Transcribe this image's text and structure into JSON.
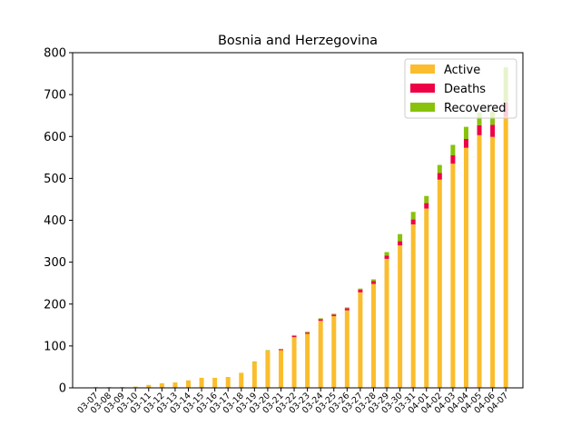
{
  "chart_data": {
    "type": "bar",
    "stacked": true,
    "title": "Bosnia and Herzegovina",
    "xlabel": "",
    "ylabel": "",
    "ylim": [
      0,
      800
    ],
    "yticks": [
      0,
      100,
      200,
      300,
      400,
      500,
      600,
      700,
      800
    ],
    "grid": false,
    "legend_position": "top-right",
    "categories": [
      "03-07",
      "03-08",
      "03-09",
      "03-10",
      "03-11",
      "03-12",
      "03-13",
      "03-14",
      "03-15",
      "03-16",
      "03-17",
      "03-18",
      "03-19",
      "03-20",
      "03-21",
      "03-22",
      "03-23",
      "03-24",
      "03-25",
      "03-26",
      "03-27",
      "03-28",
      "03-29",
      "03-30",
      "03-31",
      "04-01",
      "04-02",
      "04-03",
      "04-04",
      "04-05",
      "04-06",
      "04-07"
    ],
    "series": [
      {
        "name": "Active",
        "color": "#fbbd2d",
        "values": [
          2,
          2,
          2,
          3,
          7,
          11,
          13,
          18,
          24,
          24,
          26,
          36,
          62,
          89,
          90,
          121,
          129,
          160,
          171,
          185,
          228,
          248,
          308,
          340,
          390,
          428,
          497,
          535,
          573,
          603,
          599,
          647
        ]
      },
      {
        "name": "Deaths",
        "color": "#ed0345",
        "values": [
          0,
          0,
          0,
          0,
          0,
          0,
          0,
          0,
          0,
          0,
          0,
          0,
          0,
          0,
          2,
          3,
          3,
          4,
          4,
          5,
          6,
          7,
          8,
          10,
          12,
          13,
          16,
          20,
          21,
          24,
          29,
          34
        ]
      },
      {
        "name": "Recovered",
        "color": "#88c20c",
        "values": [
          0,
          0,
          0,
          0,
          0,
          0,
          0,
          0,
          0,
          0,
          0,
          0,
          1,
          1,
          1,
          2,
          2,
          2,
          2,
          2,
          3,
          4,
          8,
          17,
          18,
          17,
          19,
          25,
          29,
          30,
          32,
          84
        ]
      }
    ]
  }
}
